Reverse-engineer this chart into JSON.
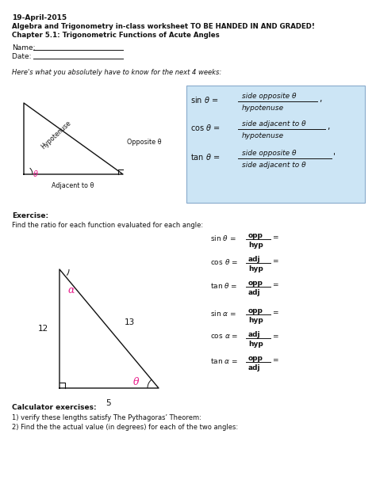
{
  "title_date": "19-April-2015",
  "title_line1": "Algebra and Trigonometry in-class worksheet TO BE HANDED IN AND GRADED!",
  "title_line2": "Chapter 5.1: Trigonometric Functions of Acute Angles",
  "box_bg": "#cce5f5",
  "exercise_bold": "Exercise:",
  "exercise_text": "Find the ratio for each function evaluated for each angle:",
  "calc_bold": "Calculator exercises:",
  "calc_line1": "1) verify these lengths satisfy The Pythagoras’ Theorem:",
  "calc_line2": "2) Find the the actual value (in degrees) for each of the two angles:",
  "pink": "#e91e8c",
  "dark": "#111111"
}
